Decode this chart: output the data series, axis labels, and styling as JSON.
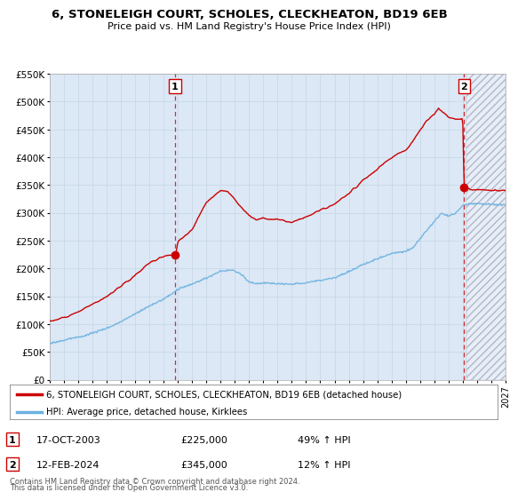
{
  "title": "6, STONELEIGH COURT, SCHOLES, CLECKHEATON, BD19 6EB",
  "subtitle": "Price paid vs. HM Land Registry's House Price Index (HPI)",
  "background_color": "#ffffff",
  "plot_bg_color": "#dce8f5",
  "grid_color": "#c8d8e8",
  "xmin": 1995,
  "xmax": 2027,
  "ymin": 0,
  "ymax": 550000,
  "yticks": [
    0,
    50000,
    100000,
    150000,
    200000,
    250000,
    300000,
    350000,
    400000,
    450000,
    500000,
    550000
  ],
  "ytick_labels": [
    "£0",
    "£50K",
    "£100K",
    "£150K",
    "£200K",
    "£250K",
    "£300K",
    "£350K",
    "£400K",
    "£450K",
    "£500K",
    "£550K"
  ],
  "hpi_color": "#6ab0e0",
  "price_color": "#cc0000",
  "sale1_x": 2003.8,
  "sale1_y": 225000,
  "sale1_label": "1",
  "sale1_date": "17-OCT-2003",
  "sale1_price": "£225,000",
  "sale1_hpi": "49% ↑ HPI",
  "sale2_x": 2024.1,
  "sale2_y": 345000,
  "sale2_label": "2",
  "sale2_date": "12-FEB-2024",
  "sale2_price": "£345,000",
  "sale2_hpi": "12% ↑ HPI",
  "legend_line1": "6, STONELEIGH COURT, SCHOLES, CLECKHEATON, BD19 6EB (detached house)",
  "legend_line2": "HPI: Average price, detached house, Kirklees",
  "footnote1": "Contains HM Land Registry data © Crown copyright and database right 2024.",
  "footnote2": "This data is licensed under the Open Government Licence v3.0.",
  "hatch_start": 2024.25,
  "vline_color": "#cc0000",
  "hatch_bg": "#e8eef8"
}
